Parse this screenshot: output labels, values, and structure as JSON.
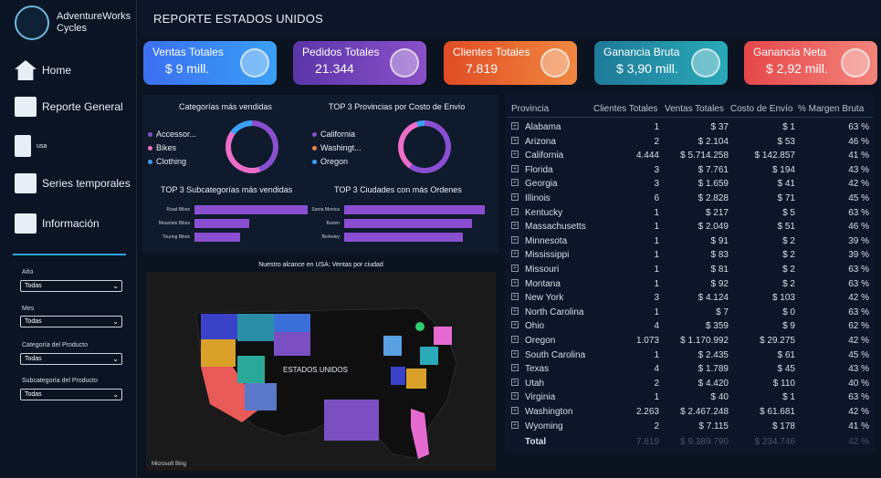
{
  "brand": {
    "line1": "AdventureWorks",
    "line2": "Cycles"
  },
  "nav": [
    {
      "label": "Home"
    },
    {
      "label": "Reporte General"
    },
    {
      "label": "usa"
    },
    {
      "label": "Series temporales"
    },
    {
      "label": "Información"
    }
  ],
  "filters": [
    {
      "label": "Año",
      "value": "Todas"
    },
    {
      "label": "Mes",
      "value": "Todas"
    },
    {
      "label": "Categoría del Producto",
      "value": "Todas"
    },
    {
      "label": "Subcategoría del Producto",
      "value": "Todas"
    }
  ],
  "page_title": "REPORTE ESTADOS UNIDOS",
  "kpis": [
    {
      "label": "Ventas Totales",
      "value": "$ 9 mill.",
      "color": "#3b78f0"
    },
    {
      "label": "Pedidos Totales",
      "value": "21.344",
      "color": "#6a3fb0"
    },
    {
      "label": "Clientes Totales",
      "value": "7.819",
      "color": "#e0552a"
    },
    {
      "label": "Ganancia Bruta",
      "value": "$ 3,90 mill.",
      "color": "#1f8ea3"
    },
    {
      "label": "Ganancia Neta",
      "value": "$ 2,92 mill.",
      "color": "#e85a58"
    }
  ],
  "charts": {
    "cat_title": "Categorías más vendidas",
    "cat_legend": [
      "Accessor...",
      "Bikes",
      "Clothing"
    ],
    "prov_title": "TOP 3 Provincias por Costo de Envío",
    "prov_legend": [
      "California",
      "Washingt...",
      "Oregon"
    ],
    "sub_title": "TOP 3 Subcategorías más vendidas",
    "sub_labels": [
      "Road Bikes",
      "Mountain Bikes",
      "Touring Bikes"
    ],
    "city_title": "TOP 3 Ciudades con más Ordenes",
    "city_labels": [
      "Santa Monica",
      "Burien",
      "Berkeley"
    ],
    "map_title": "Nuestro alcance en USA: Ventas por ciudad",
    "map_label": "ESTADOS UNIDOS",
    "map_credit": "Microsoft Bing"
  },
  "table": {
    "headers": [
      "Provincia",
      "Clientes Totales",
      "Ventas Totales",
      "Costo de Envío",
      "% Margen Bruta"
    ],
    "rows": [
      [
        "Alabama",
        "1",
        "$ 37",
        "$ 1",
        "63 %"
      ],
      [
        "Arizona",
        "2",
        "$ 2.104",
        "$ 53",
        "46 %"
      ],
      [
        "California",
        "4.444",
        "$ 5.714.258",
        "$ 142.857",
        "41 %"
      ],
      [
        "Florida",
        "3",
        "$ 7.761",
        "$ 194",
        "43 %"
      ],
      [
        "Georgia",
        "3",
        "$ 1.659",
        "$ 41",
        "42 %"
      ],
      [
        "Illinois",
        "6",
        "$ 2.828",
        "$ 71",
        "45 %"
      ],
      [
        "Kentucky",
        "1",
        "$ 217",
        "$ 5",
        "63 %"
      ],
      [
        "Massachusetts",
        "1",
        "$ 2.049",
        "$ 51",
        "46 %"
      ],
      [
        "Minnesota",
        "1",
        "$ 91",
        "$ 2",
        "39 %"
      ],
      [
        "Mississippi",
        "1",
        "$ 83",
        "$ 2",
        "39 %"
      ],
      [
        "Missouri",
        "1",
        "$ 81",
        "$ 2",
        "63 %"
      ],
      [
        "Montana",
        "1",
        "$ 92",
        "$ 2",
        "63 %"
      ],
      [
        "New York",
        "3",
        "$ 4.124",
        "$ 103",
        "42 %"
      ],
      [
        "North Carolina",
        "1",
        "$ 7",
        "$ 0",
        "63 %"
      ],
      [
        "Ohio",
        "4",
        "$ 359",
        "$ 9",
        "62 %"
      ],
      [
        "Oregon",
        "1.073",
        "$ 1.170.992",
        "$ 29.275",
        "42 %"
      ],
      [
        "South Carolina",
        "1",
        "$ 2.435",
        "$ 61",
        "45 %"
      ],
      [
        "Texas",
        "4",
        "$ 1.789",
        "$ 45",
        "43 %"
      ],
      [
        "Utah",
        "2",
        "$ 4.420",
        "$ 110",
        "40 %"
      ],
      [
        "Virginia",
        "1",
        "$ 40",
        "$ 1",
        "63 %"
      ],
      [
        "Washington",
        "2.263",
        "$ 2.467.248",
        "$ 61.681",
        "42 %"
      ],
      [
        "Wyoming",
        "2",
        "$ 7.115",
        "$ 178",
        "41 %"
      ]
    ],
    "total": [
      "Total",
      "7.819",
      "$ 9.389.790",
      "$ 234.746",
      "42 %"
    ]
  }
}
